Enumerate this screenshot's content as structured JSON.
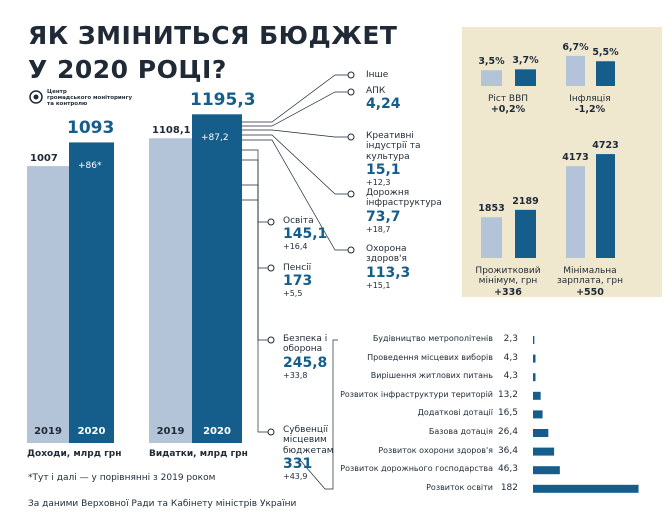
{
  "title": [
    "ЯК ЗМІНИТЬСЯ БЮДЖЕТ",
    "У 2020 РОЦІ?"
  ],
  "logo": [
    "Центр",
    "громадського моніторингу",
    "та контролю"
  ],
  "footnote": "*Тут і далі — у порівнянні з 2019  роком",
  "source": "За даними Верховної Ради та Кабінету міністрів України",
  "chart_data": [
    {
      "type": "bar",
      "label": "Доходи, млрд грн",
      "categories": [
        "2019",
        "2020"
      ],
      "values": [
        1007,
        1093
      ],
      "colors": [
        "#b4c4d8",
        "#155e8b"
      ],
      "change_label": "+86*"
    },
    {
      "type": "bar",
      "label": "Видатки, млрд грн",
      "categories": [
        "2019",
        "2020"
      ],
      "values": [
        1108.1,
        1195.3
      ],
      "value_labels": [
        "1108,1",
        "1195,3"
      ],
      "colors": [
        "#b4c4d8",
        "#155e8b"
      ],
      "change_label": "+87,2"
    },
    {
      "type": "breakdown",
      "categories": [
        "Інше",
        "АПК",
        "Креативні індустрії та культура",
        "Дорожня інфраструктура",
        "Охорона здоров'я",
        "Освіта",
        "Пенсії",
        "Безпека і оборона",
        "Субвенції місцевим бюджетам"
      ],
      "values": [
        null,
        4.24,
        15.1,
        73.7,
        113.3,
        145.1,
        173,
        245.8,
        331
      ],
      "value_labels": [
        null,
        "4,24",
        "15,1",
        "73,7",
        "113,3",
        "145,1",
        "173",
        "245,8",
        "331"
      ],
      "change_labels": [
        null,
        null,
        "+12,3",
        "+18,7",
        "+15,1",
        "+16,4",
        "+5,5",
        "+33,8",
        "+43,9"
      ]
    },
    {
      "type": "pair",
      "title": "Ріст ВВП",
      "values": [
        3.5,
        3.7
      ],
      "value_labels": [
        "3,5%",
        "3,7%"
      ],
      "colors": [
        "#b4c4d8",
        "#155e8b"
      ],
      "change_label": "+0,2%"
    },
    {
      "type": "pair",
      "title": "Інфляція",
      "values": [
        6.7,
        5.5
      ],
      "value_labels": [
        "6,7%",
        "5,5%"
      ],
      "colors": [
        "#b4c4d8",
        "#155e8b"
      ],
      "change_label": "-1,2%"
    },
    {
      "type": "pair",
      "title": "Прожитковий мінімум, грн",
      "values": [
        1853,
        2189
      ],
      "colors": [
        "#b4c4d8",
        "#155e8b"
      ],
      "change_label": "+336"
    },
    {
      "type": "pair",
      "title": "Мінімальна зарплата, грн",
      "values": [
        4173,
        4723
      ],
      "colors": [
        "#b4c4d8",
        "#155e8b"
      ],
      "change_label": "+550"
    },
    {
      "type": "hbar",
      "categories": [
        "Будівництво метрополітенів",
        "Проведення місцевих виборів",
        "Вирішення житлових питань",
        "Розвиток інфраструктури територій",
        "Додаткові дотації",
        "Базова дотація",
        "Розвиток охорони здоров'я",
        "Розвиток дорожнього господарства",
        "Розвиток освіти"
      ],
      "values": [
        2.3,
        4.3,
        4.3,
        13.2,
        16.5,
        26.4,
        36.4,
        46.3,
        182
      ],
      "value_labels": [
        "2,3",
        "4,3",
        "4,3",
        "13,2",
        "16,5",
        "26,4",
        "36,4",
        "46,3",
        "182"
      ],
      "color": "#155e8b"
    }
  ]
}
